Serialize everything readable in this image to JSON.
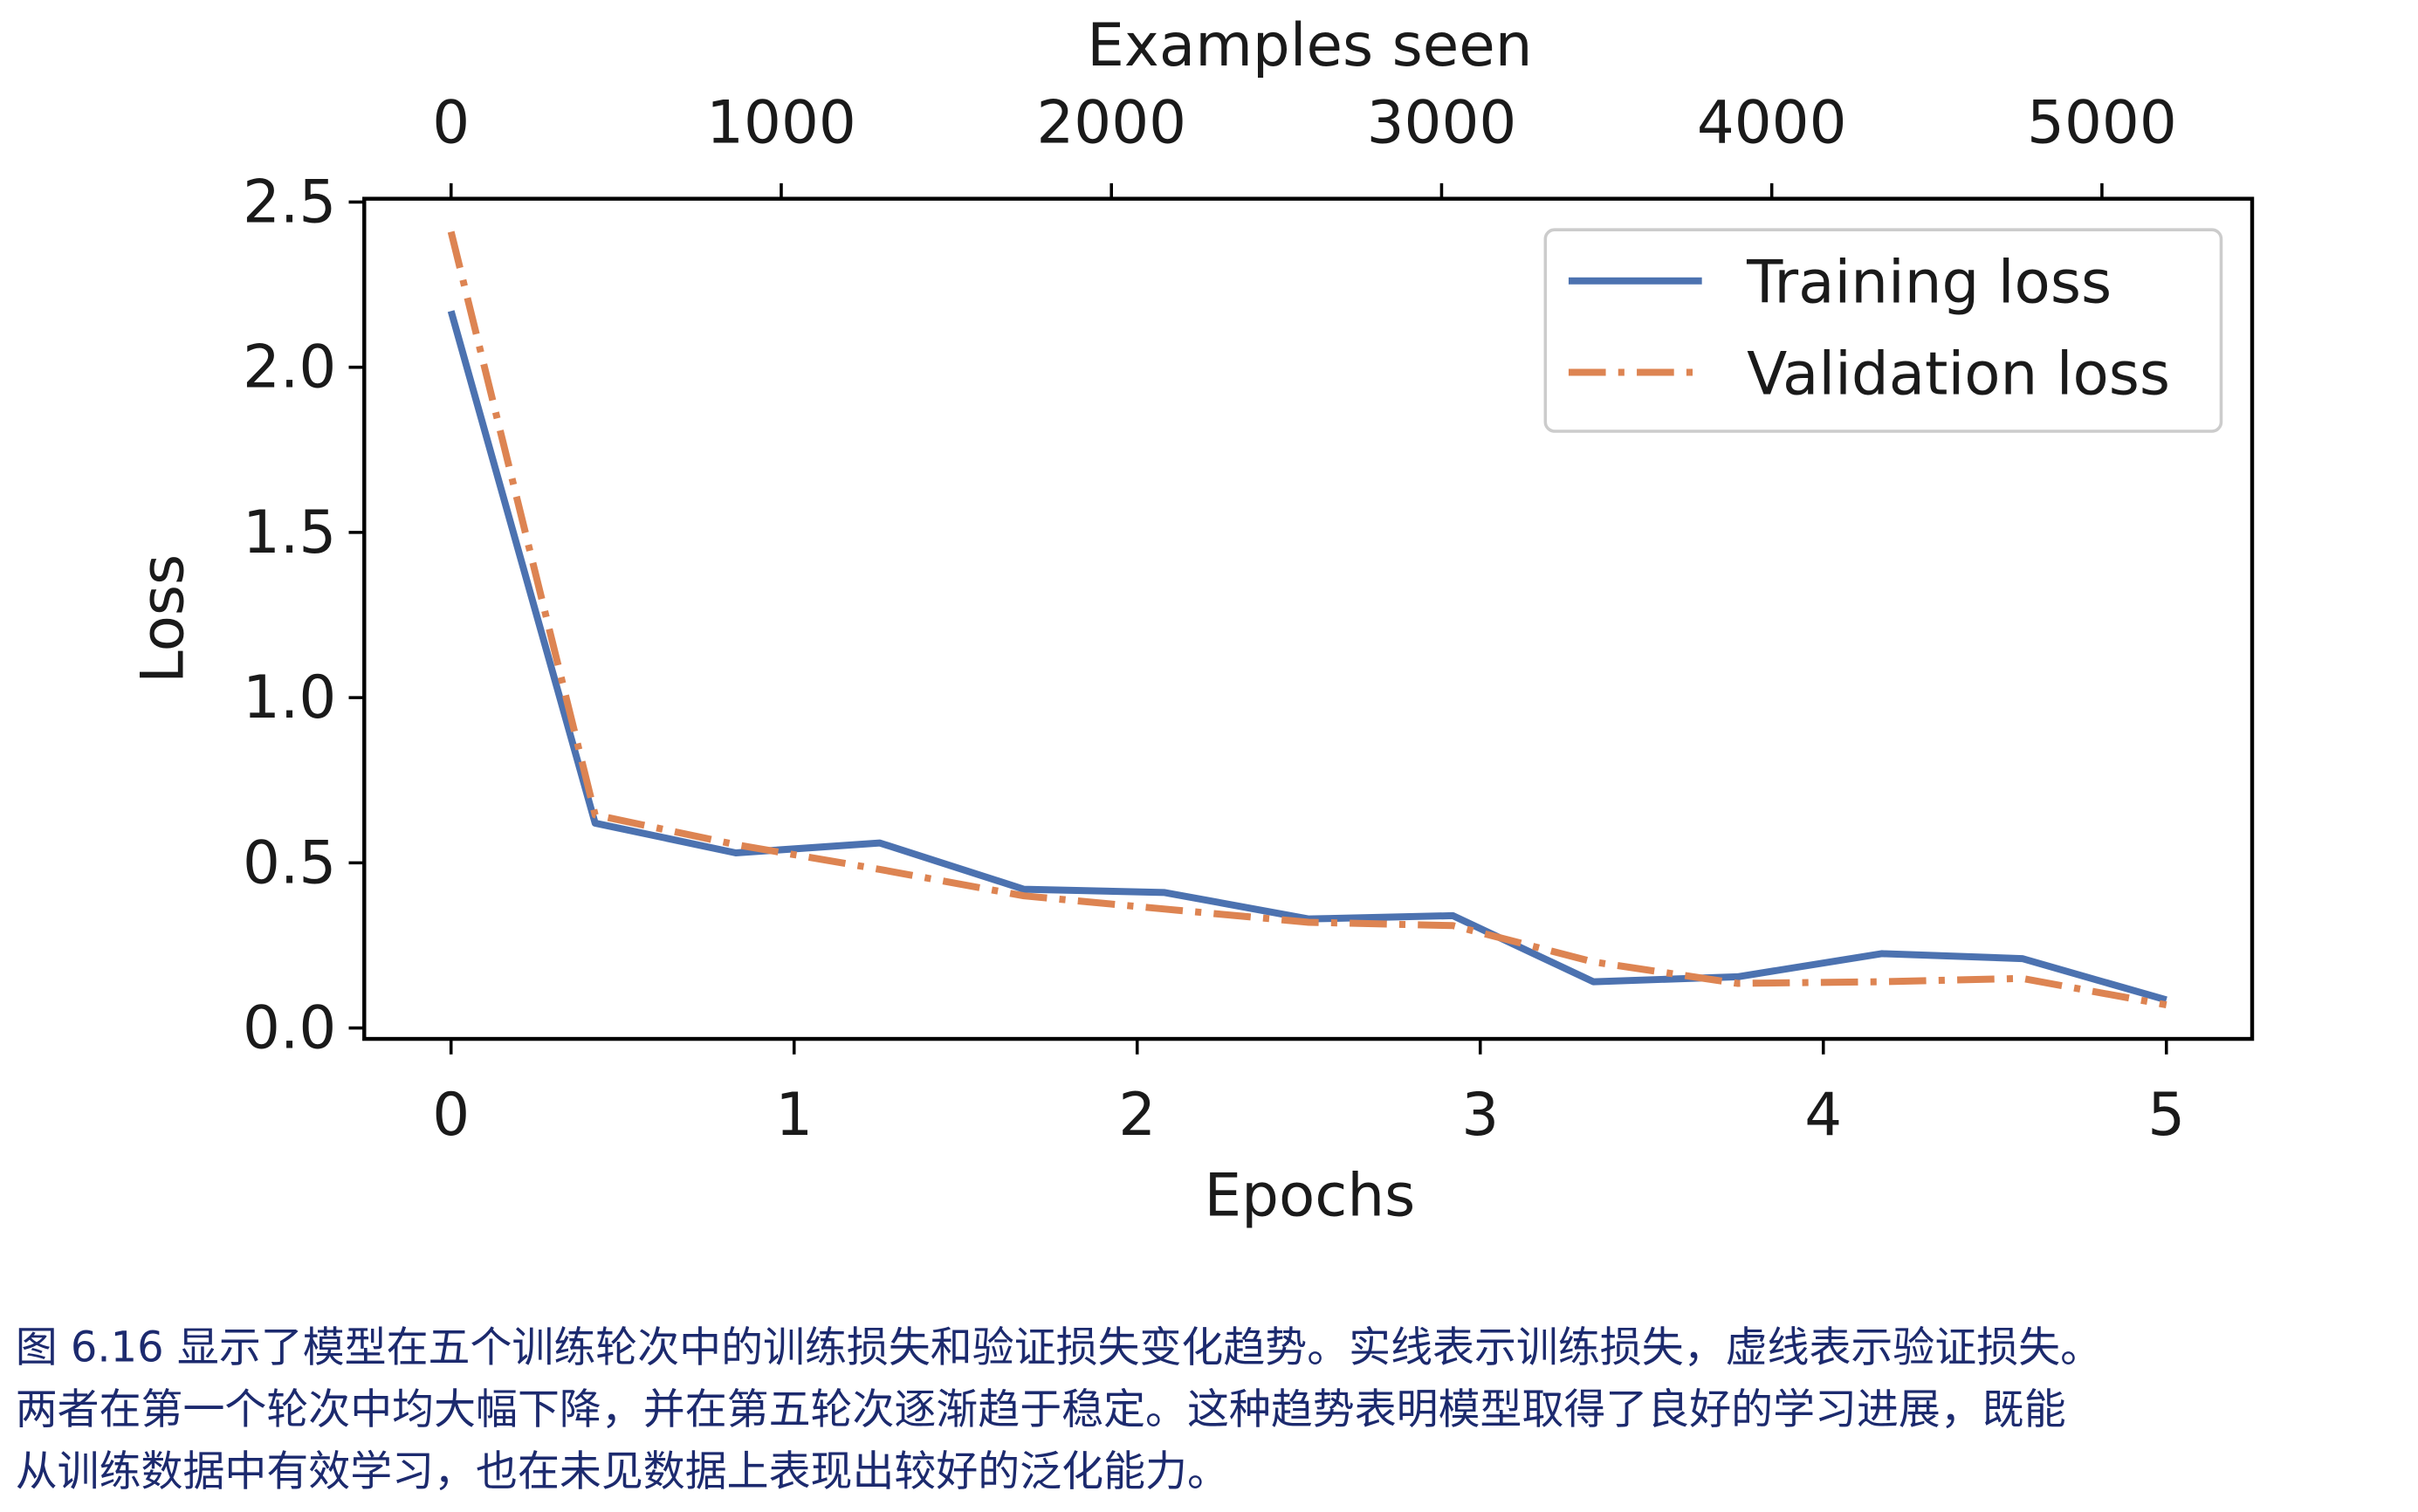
{
  "chart_data": {
    "type": "line",
    "x_label": "Epochs",
    "y_label": "Loss",
    "x2_label": "Examples seen",
    "x": [
      0,
      0.42,
      0.83,
      1.25,
      1.67,
      2.08,
      2.5,
      2.92,
      3.33,
      3.75,
      4.17,
      4.58,
      5
    ],
    "series": [
      {
        "name": "Training loss",
        "color": "#4c72b0",
        "style": "solid",
        "values": [
          2.17,
          0.62,
          0.53,
          0.56,
          0.42,
          0.41,
          0.33,
          0.34,
          0.14,
          0.155,
          0.225,
          0.21,
          0.085
        ]
      },
      {
        "name": "Validation loss",
        "color": "#dd8452",
        "style": "dashdot",
        "values": [
          2.41,
          0.645,
          0.555,
          0.48,
          0.4,
          0.36,
          0.32,
          0.31,
          0.2,
          0.135,
          0.14,
          0.15,
          0.07
        ]
      }
    ],
    "xlim": [
      -0.253,
      5.25
    ],
    "xticks": [
      0,
      1,
      2,
      3,
      4,
      5
    ],
    "ylim": [
      -0.033,
      2.51
    ],
    "yticks": [
      {
        "value": 0,
        "label": "0.0"
      },
      0.5,
      {
        "value": 1,
        "label": "1.0"
      },
      1.5,
      {
        "value": 2,
        "label": "2.0"
      },
      2.5
    ],
    "x2lim": [
      -263,
      5455
    ],
    "x2ticks": [
      0,
      1000,
      2000,
      3000,
      4000,
      5000
    ],
    "legend": "upper right",
    "grid": false
  },
  "caption": [
    "图 6.16 显示了模型在五个训练轮次中的训练损失和验证损失变化趋势。实线表示训练损失，虚线表示验证损失。",
    "两者在第一个轮次中均大幅下降，并在第五轮次逐渐趋于稳定。这种趋势表明模型取得了良好的学习进展，既能",
    "从训练数据中有效学习，也在未见数据上表现出较好的泛化能力。"
  ]
}
